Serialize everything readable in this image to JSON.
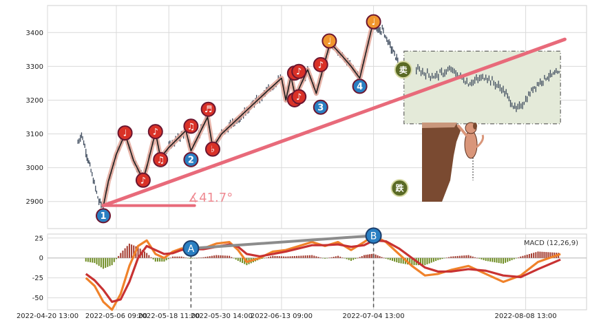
{
  "chart_data": [
    {
      "type": "candlestick",
      "panel": "price",
      "title": "",
      "xlabel": "",
      "ylabel": "",
      "ylim": [
        2820,
        3480
      ],
      "yticks": [
        2900,
        3000,
        3100,
        3200,
        3300,
        3400
      ],
      "xlim": [
        "2022-04-20 13:00",
        "2022-08-22 13:00"
      ],
      "xticks": [
        "2022-04-20 13:00",
        "2022-05-06 09:00",
        "2022-05-18 11:00",
        "2022-05-30 14:00",
        "2022-06-13 09:00",
        "2022-07-04 13:00",
        "2022-08-08 13:00"
      ],
      "grid": true,
      "price_path": [
        {
          "t": "2022-04-27 13:00",
          "v": 3075
        },
        {
          "t": "2022-04-28 09:00",
          "v": 3100
        },
        {
          "t": "2022-04-29 09:00",
          "v": 3050
        },
        {
          "t": "2022-04-30 13:00",
          "v": 2990
        },
        {
          "t": "2022-05-02 09:00",
          "v": 2900
        },
        {
          "t": "2022-05-03 09:00",
          "v": 2885
        },
        {
          "t": "2022-05-04 13:00",
          "v": 2960
        },
        {
          "t": "2022-05-06 09:00",
          "v": 3040
        },
        {
          "t": "2022-05-08 09:00",
          "v": 3100
        },
        {
          "t": "2022-05-10 09:00",
          "v": 3020
        },
        {
          "t": "2022-05-12 13:00",
          "v": 2965
        },
        {
          "t": "2022-05-13 13:00",
          "v": 3010
        },
        {
          "t": "2022-05-15 09:00",
          "v": 3105
        },
        {
          "t": "2022-05-16 13:00",
          "v": 3030
        },
        {
          "t": "2022-05-18 11:00",
          "v": 3060
        },
        {
          "t": "2022-05-22 09:00",
          "v": 3110
        },
        {
          "t": "2022-05-23 13:00",
          "v": 3050
        },
        {
          "t": "2022-05-27 09:00",
          "v": 3150
        },
        {
          "t": "2022-05-28 13:00",
          "v": 3060
        },
        {
          "t": "2022-05-30 14:00",
          "v": 3100
        },
        {
          "t": "2022-06-05 09:00",
          "v": 3170
        },
        {
          "t": "2022-06-10 09:00",
          "v": 3230
        },
        {
          "t": "2022-06-13 09:00",
          "v": 3265
        },
        {
          "t": "2022-06-14 09:00",
          "v": 3200
        },
        {
          "t": "2022-06-15 13:00",
          "v": 3270
        },
        {
          "t": "2022-06-16 13:00",
          "v": 3210
        },
        {
          "t": "2022-06-19 09:00",
          "v": 3290
        },
        {
          "t": "2022-06-21 09:00",
          "v": 3220
        },
        {
          "t": "2022-06-24 13:00",
          "v": 3370
        },
        {
          "t": "2022-06-27 09:00",
          "v": 3330
        },
        {
          "t": "2022-06-29 09:00",
          "v": 3300
        },
        {
          "t": "2022-07-01 09:00",
          "v": 3265
        },
        {
          "t": "2022-07-04 13:00",
          "v": 3435
        },
        {
          "t": "2022-07-05 13:00",
          "v": 3400
        },
        {
          "t": "2022-07-06 13:00",
          "v": 3410
        },
        {
          "t": "2022-07-08 09:00",
          "v": 3360
        },
        {
          "t": "2022-07-10 09:00",
          "v": 3310
        }
      ],
      "future_path": [
        {
          "t": "2022-07-14 09:00",
          "v": 3290
        },
        {
          "t": "2022-07-18 09:00",
          "v": 3270
        },
        {
          "t": "2022-07-22 09:00",
          "v": 3290
        },
        {
          "t": "2022-07-26 09:00",
          "v": 3250
        },
        {
          "t": "2022-07-30 09:00",
          "v": 3270
        },
        {
          "t": "2022-08-03 09:00",
          "v": 3230
        },
        {
          "t": "2022-08-06 09:00",
          "v": 3170
        },
        {
          "t": "2022-08-08 13:00",
          "v": 3200
        },
        {
          "t": "2022-08-10 13:00",
          "v": 3240
        },
        {
          "t": "2022-08-13 13:00",
          "v": 3270
        },
        {
          "t": "2022-08-16 13:00",
          "v": 3280
        }
      ],
      "trendline": {
        "from": {
          "t": "2022-05-03 09:00",
          "v": 2888
        },
        "to": {
          "t": "2022-08-17 13:00",
          "v": 3380
        }
      },
      "angle_annotation": "∡41.7°",
      "angle_base": {
        "from": {
          "t": "2022-05-03 09:00",
          "v": 2888
        },
        "to": {
          "t": "2022-05-24 09:00",
          "v": 2888
        }
      },
      "pattern_markers": [
        {
          "label": "1",
          "kind": "blue",
          "t": "2022-05-03 09:00",
          "v": 2858
        },
        {
          "label": "♩",
          "kind": "red",
          "t": "2022-05-08 09:00",
          "v": 3103
        },
        {
          "label": "♪",
          "kind": "red",
          "t": "2022-05-12 13:00",
          "v": 2963
        },
        {
          "label": "♪",
          "kind": "red",
          "t": "2022-05-15 09:00",
          "v": 3107
        },
        {
          "label": "♫",
          "kind": "red",
          "t": "2022-05-16 13:00",
          "v": 3024
        },
        {
          "label": "2",
          "kind": "blue",
          "t": "2022-05-23 13:00",
          "v": 3024
        },
        {
          "label": "♫",
          "kind": "red",
          "t": "2022-05-23 13:00",
          "v": 3123
        },
        {
          "label": "♬",
          "kind": "red",
          "t": "2022-05-27 13:00",
          "v": 3173
        },
        {
          "label": "♭",
          "kind": "red",
          "t": "2022-05-28 13:00",
          "v": 3055
        },
        {
          "label": "♯",
          "kind": "red",
          "t": "2022-06-16 09:00",
          "v": 3201
        },
        {
          "label": "♭",
          "kind": "red",
          "t": "2022-06-16 09:00",
          "v": 3280
        },
        {
          "label": "♪",
          "kind": "red",
          "t": "2022-06-17 09:00",
          "v": 3285
        },
        {
          "label": "♪",
          "kind": "red",
          "t": "2022-06-17 09:00",
          "v": 3210
        },
        {
          "label": "♪",
          "kind": "red",
          "t": "2022-06-22 09:00",
          "v": 3305
        },
        {
          "label": "3",
          "kind": "blue",
          "t": "2022-06-22 09:00",
          "v": 3179
        },
        {
          "label": "♩",
          "kind": "orange",
          "t": "2022-06-24 09:00",
          "v": 3375
        },
        {
          "label": "4",
          "kind": "blue",
          "t": "2022-07-01 09:00",
          "v": 3241
        },
        {
          "label": "♩",
          "kind": "orange",
          "t": "2022-07-04 13:00",
          "v": 3432
        },
        {
          "label": "卖",
          "kind": "olive",
          "t": "2022-07-11 09:00",
          "v": 3290
        },
        {
          "label": "跌",
          "kind": "olive",
          "t": "2022-07-10 13:00",
          "v": 2940
        }
      ],
      "forecast_box": {
        "t_from": "2022-07-11 13:00",
        "t_to": "2022-08-16 13:00",
        "v_from": 3130,
        "v_to": 3345
      }
    },
    {
      "type": "macd",
      "panel": "indicator",
      "legend": "MACD (12,26,9)",
      "legend_position": "top-right",
      "ylim": [
        -65,
        30
      ],
      "yticks": [
        25,
        0,
        -25,
        -50
      ],
      "xticks": [
        "2022-04-20 13:00",
        "2022-05-06 09:00",
        "2022-05-18 11:00",
        "2022-05-30 14:00",
        "2022-06-13 09:00",
        "2022-07-04 13:00",
        "2022-08-08 13:00"
      ],
      "grid": true,
      "series": [
        {
          "name": "",
          "color": "#f0822a",
          "points": [
            {
              "t": "2022-04-29 09:00",
              "v": -25
            },
            {
              "t": "2022-05-01 09:00",
              "v": -35
            },
            {
              "t": "2022-05-03 09:00",
              "v": -55
            },
            {
              "t": "2022-05-05 09:00",
              "v": -65
            },
            {
              "t": "2022-05-07 09:00",
              "v": -45
            },
            {
              "t": "2022-05-09 09:00",
              "v": -10
            },
            {
              "t": "2022-05-11 09:00",
              "v": 15
            },
            {
              "t": "2022-05-13 09:00",
              "v": 22
            },
            {
              "t": "2022-05-15 09:00",
              "v": 5
            },
            {
              "t": "2022-05-17 09:00",
              "v": 0
            },
            {
              "t": "2022-05-19 09:00",
              "v": 8
            },
            {
              "t": "2022-05-21 09:00",
              "v": 12
            },
            {
              "t": "2022-05-23 09:00",
              "v": 10
            },
            {
              "t": "2022-05-26 09:00",
              "v": 12
            },
            {
              "t": "2022-05-29 09:00",
              "v": 18
            },
            {
              "t": "2022-06-01 09:00",
              "v": 20
            },
            {
              "t": "2022-06-03 09:00",
              "v": 10
            },
            {
              "t": "2022-06-05 09:00",
              "v": -5
            },
            {
              "t": "2022-06-08 09:00",
              "v": 0
            },
            {
              "t": "2022-06-11 09:00",
              "v": 8
            },
            {
              "t": "2022-06-14 09:00",
              "v": 10
            },
            {
              "t": "2022-06-17 09:00",
              "v": 15
            },
            {
              "t": "2022-06-20 09:00",
              "v": 20
            },
            {
              "t": "2022-06-23 09:00",
              "v": 15
            },
            {
              "t": "2022-06-26 09:00",
              "v": 20
            },
            {
              "t": "2022-06-29 09:00",
              "v": 10
            },
            {
              "t": "2022-07-02 09:00",
              "v": 20
            },
            {
              "t": "2022-07-04 13:00",
              "v": 28
            },
            {
              "t": "2022-07-07 09:00",
              "v": 20
            },
            {
              "t": "2022-07-10 09:00",
              "v": 5
            },
            {
              "t": "2022-07-13 09:00",
              "v": -10
            },
            {
              "t": "2022-07-16 09:00",
              "v": -22
            },
            {
              "t": "2022-07-19 09:00",
              "v": -20
            },
            {
              "t": "2022-07-22 09:00",
              "v": -15
            },
            {
              "t": "2022-07-26 09:00",
              "v": -10
            },
            {
              "t": "2022-07-30 09:00",
              "v": -20
            },
            {
              "t": "2022-08-03 09:00",
              "v": -30
            },
            {
              "t": "2022-08-07 09:00",
              "v": -22
            },
            {
              "t": "2022-08-11 09:00",
              "v": -5
            },
            {
              "t": "2022-08-16 13:00",
              "v": 5
            }
          ]
        },
        {
          "name": "",
          "color": "#c83232",
          "points": [
            {
              "t": "2022-04-29 09:00",
              "v": -20
            },
            {
              "t": "2022-05-01 09:00",
              "v": -28
            },
            {
              "t": "2022-05-03 09:00",
              "v": -40
            },
            {
              "t": "2022-05-05 09:00",
              "v": -55
            },
            {
              "t": "2022-05-07 09:00",
              "v": -52
            },
            {
              "t": "2022-05-09 09:00",
              "v": -30
            },
            {
              "t": "2022-05-11 09:00",
              "v": 0
            },
            {
              "t": "2022-05-13 09:00",
              "v": 15
            },
            {
              "t": "2022-05-15 09:00",
              "v": 10
            },
            {
              "t": "2022-05-17 09:00",
              "v": 5
            },
            {
              "t": "2022-05-19 09:00",
              "v": 6
            },
            {
              "t": "2022-05-21 09:00",
              "v": 10
            },
            {
              "t": "2022-05-23 09:00",
              "v": 11
            },
            {
              "t": "2022-05-26 09:00",
              "v": 11
            },
            {
              "t": "2022-05-29 09:00",
              "v": 14
            },
            {
              "t": "2022-06-01 09:00",
              "v": 17
            },
            {
              "t": "2022-06-03 09:00",
              "v": 14
            },
            {
              "t": "2022-06-05 09:00",
              "v": 5
            },
            {
              "t": "2022-06-08 09:00",
              "v": 2
            },
            {
              "t": "2022-06-11 09:00",
              "v": 5
            },
            {
              "t": "2022-06-14 09:00",
              "v": 8
            },
            {
              "t": "2022-06-17 09:00",
              "v": 12
            },
            {
              "t": "2022-06-20 09:00",
              "v": 16
            },
            {
              "t": "2022-06-23 09:00",
              "v": 16
            },
            {
              "t": "2022-06-26 09:00",
              "v": 17
            },
            {
              "t": "2022-06-29 09:00",
              "v": 14
            },
            {
              "t": "2022-07-02 09:00",
              "v": 16
            },
            {
              "t": "2022-07-04 13:00",
              "v": 22
            },
            {
              "t": "2022-07-07 09:00",
              "v": 21
            },
            {
              "t": "2022-07-10 09:00",
              "v": 12
            },
            {
              "t": "2022-07-13 09:00",
              "v": 0
            },
            {
              "t": "2022-07-16 09:00",
              "v": -12
            },
            {
              "t": "2022-07-19 09:00",
              "v": -17
            },
            {
              "t": "2022-07-22 09:00",
              "v": -17
            },
            {
              "t": "2022-07-26 09:00",
              "v": -14
            },
            {
              "t": "2022-07-30 09:00",
              "v": -16
            },
            {
              "t": "2022-08-03 09:00",
              "v": -22
            },
            {
              "t": "2022-08-07 09:00",
              "v": -24
            },
            {
              "t": "2022-08-11 09:00",
              "v": -14
            },
            {
              "t": "2022-08-16 13:00",
              "v": -2
            }
          ]
        }
      ],
      "divergence_line": {
        "from": {
          "t": "2022-05-23 13:00",
          "v": 12
        },
        "to": {
          "t": "2022-07-04 13:00",
          "v": 28
        }
      },
      "divergence_markers": [
        {
          "label": "A",
          "t": "2022-05-23 13:00",
          "v": 12
        },
        {
          "label": "B",
          "t": "2022-07-04 13:00",
          "v": 28
        }
      ]
    }
  ]
}
